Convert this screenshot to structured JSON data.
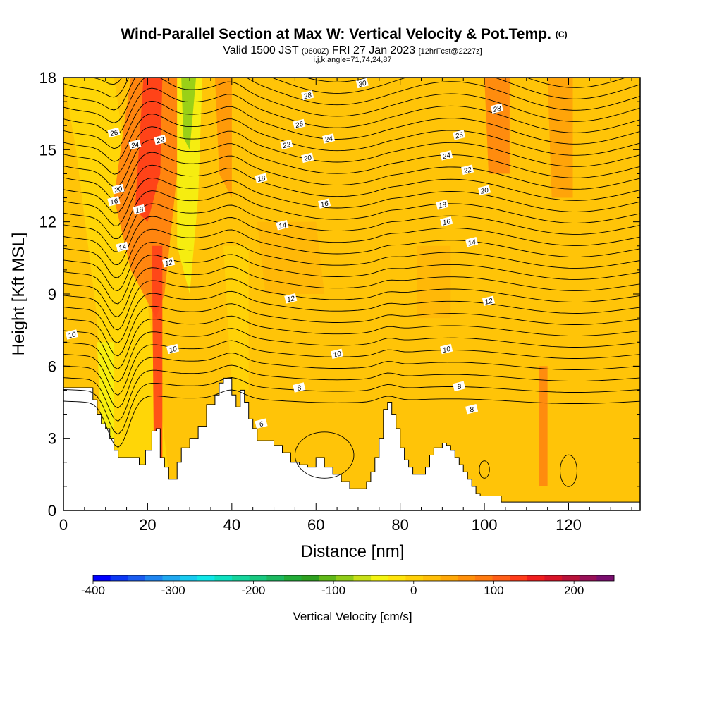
{
  "chart_data": {
    "type": "heatmap",
    "title": "Wind-Parallel Section at Max W: Vertical Velocity & Pot.Temp.",
    "title_mark": "(C)",
    "subtitle_main": "Valid 1500 JST",
    "subtitle_z": "(0600Z)",
    "subtitle_date": "FRI 27 Jan 2023",
    "subtitle_fcst": "[12hrFcst@2227z]",
    "subtitle2": "i,j,k,angle=71,74,24,87",
    "xlabel": "Distance [nm]",
    "ylabel": "Height [Kft MSL]",
    "xlim": [
      0,
      137
    ],
    "ylim": [
      0,
      18
    ],
    "x_ticks": [
      "0",
      "20",
      "40",
      "60",
      "80",
      "100",
      "120"
    ],
    "y_ticks": [
      "0",
      "3",
      "6",
      "9",
      "12",
      "15",
      "18"
    ],
    "colorbar": {
      "label": "Vertical Velocity [cm/s]",
      "ticks": [
        "-400",
        "-300",
        "-200",
        "-100",
        "0",
        "100",
        "200"
      ],
      "range": [
        -400,
        250
      ],
      "step": 25,
      "colors": [
        "#0000ff",
        "#0c38f4",
        "#1a5cf0",
        "#1f85f0",
        "#20a8f0",
        "#18caf0",
        "#10e6e8",
        "#0ee0c0",
        "#16d49c",
        "#18c880",
        "#1cb860",
        "#22ac38",
        "#2ea020",
        "#60b818",
        "#90cc18",
        "#c8e018",
        "#f4f412",
        "#ffe40c",
        "#ffd008",
        "#ffbf08",
        "#ffa808",
        "#ff900a",
        "#ff7a10",
        "#ff5e18",
        "#ff3c1a",
        "#f01e1e",
        "#d81428",
        "#b8123a",
        "#981058",
        "#7a0e6e"
      ]
    },
    "contour_labels": [
      {
        "x": 71,
        "y": 17.75,
        "v": "30"
      },
      {
        "x": 58,
        "y": 17.25,
        "v": "28"
      },
      {
        "x": 103,
        "y": 16.7,
        "v": "28"
      },
      {
        "x": 12,
        "y": 15.7,
        "v": "26"
      },
      {
        "x": 56,
        "y": 16.05,
        "v": "26"
      },
      {
        "x": 94,
        "y": 15.6,
        "v": "26"
      },
      {
        "x": 17,
        "y": 15.2,
        "v": "24"
      },
      {
        "x": 63,
        "y": 15.45,
        "v": "24"
      },
      {
        "x": 91,
        "y": 14.75,
        "v": "24"
      },
      {
        "x": 23,
        "y": 15.4,
        "v": "22"
      },
      {
        "x": 53,
        "y": 15.2,
        "v": "22"
      },
      {
        "x": 96,
        "y": 14.15,
        "v": "22"
      },
      {
        "x": 58,
        "y": 14.65,
        "v": "20"
      },
      {
        "x": 13,
        "y": 13.35,
        "v": "20"
      },
      {
        "x": 100,
        "y": 13.3,
        "v": "20"
      },
      {
        "x": 47,
        "y": 13.8,
        "v": "18"
      },
      {
        "x": 12,
        "y": 12.85,
        "v": "16"
      },
      {
        "x": 18,
        "y": 12.5,
        "v": "18"
      },
      {
        "x": 62,
        "y": 12.75,
        "v": "16"
      },
      {
        "x": 90,
        "y": 12.7,
        "v": "18"
      },
      {
        "x": 91,
        "y": 12.0,
        "v": "16"
      },
      {
        "x": 52,
        "y": 11.85,
        "v": "14"
      },
      {
        "x": 14,
        "y": 10.95,
        "v": "14"
      },
      {
        "x": 97,
        "y": 11.15,
        "v": "14"
      },
      {
        "x": 25,
        "y": 10.3,
        "v": "12"
      },
      {
        "x": 54,
        "y": 8.8,
        "v": "12"
      },
      {
        "x": 101,
        "y": 8.7,
        "v": "12"
      },
      {
        "x": 2,
        "y": 7.3,
        "v": "10"
      },
      {
        "x": 26,
        "y": 6.7,
        "v": "10"
      },
      {
        "x": 65,
        "y": 6.5,
        "v": "10"
      },
      {
        "x": 91,
        "y": 6.7,
        "v": "10"
      },
      {
        "x": 56,
        "y": 5.1,
        "v": "8"
      },
      {
        "x": 94,
        "y": 5.15,
        "v": "8"
      },
      {
        "x": 97,
        "y": 4.2,
        "v": "8"
      },
      {
        "x": 47,
        "y": 3.6,
        "v": "6"
      }
    ]
  }
}
